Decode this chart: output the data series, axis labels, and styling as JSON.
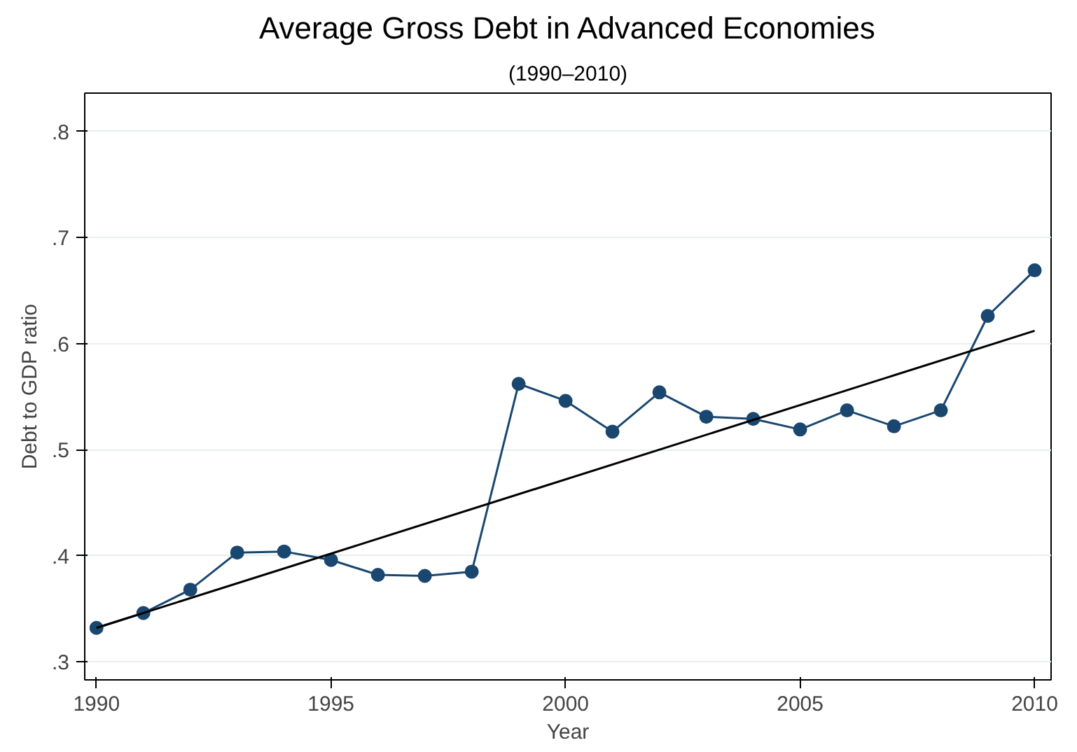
{
  "chart_data": {
    "type": "line",
    "title": "Average Gross Debt in Advanced Economies",
    "subtitle": "(1990–2010)",
    "xlabel": "Year",
    "ylabel": "Debt to GDP ratio",
    "x": [
      1990,
      1991,
      1992,
      1993,
      1994,
      1995,
      1996,
      1997,
      1998,
      1999,
      2000,
      2001,
      2002,
      2003,
      2004,
      2005,
      2006,
      2007,
      2008,
      2009,
      2010
    ],
    "series": [
      {
        "color": "#1a476f",
        "marker": "circle",
        "values": [
          0.332,
          0.346,
          0.368,
          0.403,
          0.404,
          0.396,
          0.382,
          0.381,
          0.385,
          0.562,
          0.546,
          0.517,
          0.554,
          0.531,
          0.529,
          0.519,
          0.537,
          0.522,
          0.537,
          0.626,
          0.669
        ]
      },
      {
        "color": "#000000",
        "marker": "none",
        "x": [
          1990,
          2010
        ],
        "values": [
          0.332,
          0.612
        ]
      }
    ],
    "xlim": [
      1989.75,
      2010.35
    ],
    "ylim": [
      0.283,
      0.836
    ],
    "xticks": [
      1990,
      1995,
      2000,
      2005,
      2010
    ],
    "yticks": [
      {
        "value": 0.3,
        "label": ".3"
      },
      {
        "value": 0.4,
        "label": ".4"
      },
      {
        "value": 0.5,
        "label": ".5"
      },
      {
        "value": 0.6,
        "label": ".6"
      },
      {
        "value": 0.7,
        "label": ".7"
      },
      {
        "value": 0.8,
        "label": ".8"
      }
    ],
    "grid": "y"
  }
}
